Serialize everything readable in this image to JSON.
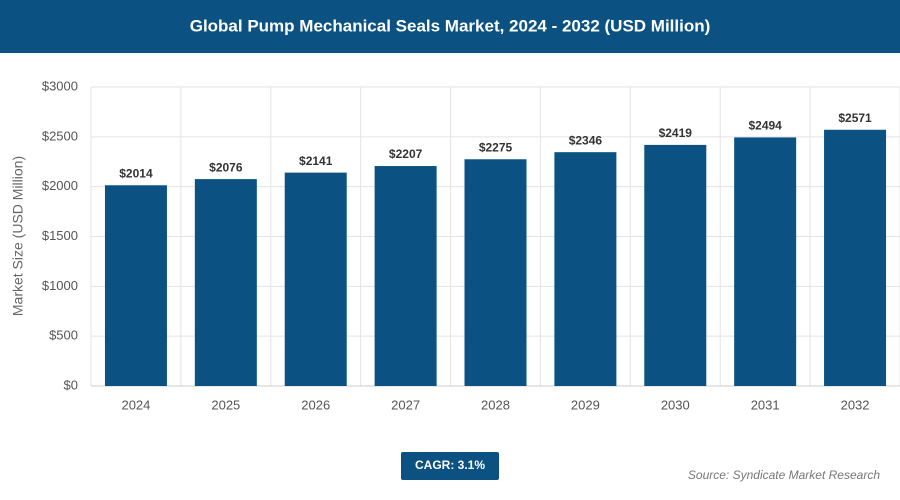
{
  "chart_data": {
    "type": "bar",
    "title": "Global Pump Mechanical Seals Market, 2024 - 2032 (USD Million)",
    "y_label": "Market Size (USD Million)",
    "categories": [
      "2024",
      "2025",
      "2026",
      "2027",
      "2028",
      "2029",
      "2030",
      "2031",
      "2032"
    ],
    "values": [
      2014,
      2076,
      2141,
      2207,
      2275,
      2346,
      2419,
      2494,
      2571
    ],
    "value_labels": [
      "$2014",
      "$2076",
      "$2141",
      "$2207",
      "$2275",
      "$2346",
      "$2419",
      "$2494",
      "$2571"
    ],
    "color": "#0b5283",
    "ylim": [
      0,
      3000
    ],
    "yticks": [
      {
        "value": 0,
        "label": "$0"
      },
      {
        "value": 500,
        "label": "$500"
      },
      {
        "value": 1000,
        "label": "$1000"
      },
      {
        "value": 1500,
        "label": "$1500"
      },
      {
        "value": 2000,
        "label": "$2000"
      },
      {
        "value": 2500,
        "label": "$2500"
      },
      {
        "value": 3000,
        "label": "$3000"
      }
    ],
    "grid": true,
    "cagr_label": "CAGR: 3.1%",
    "source": "Source: Syndicate Market Research"
  }
}
